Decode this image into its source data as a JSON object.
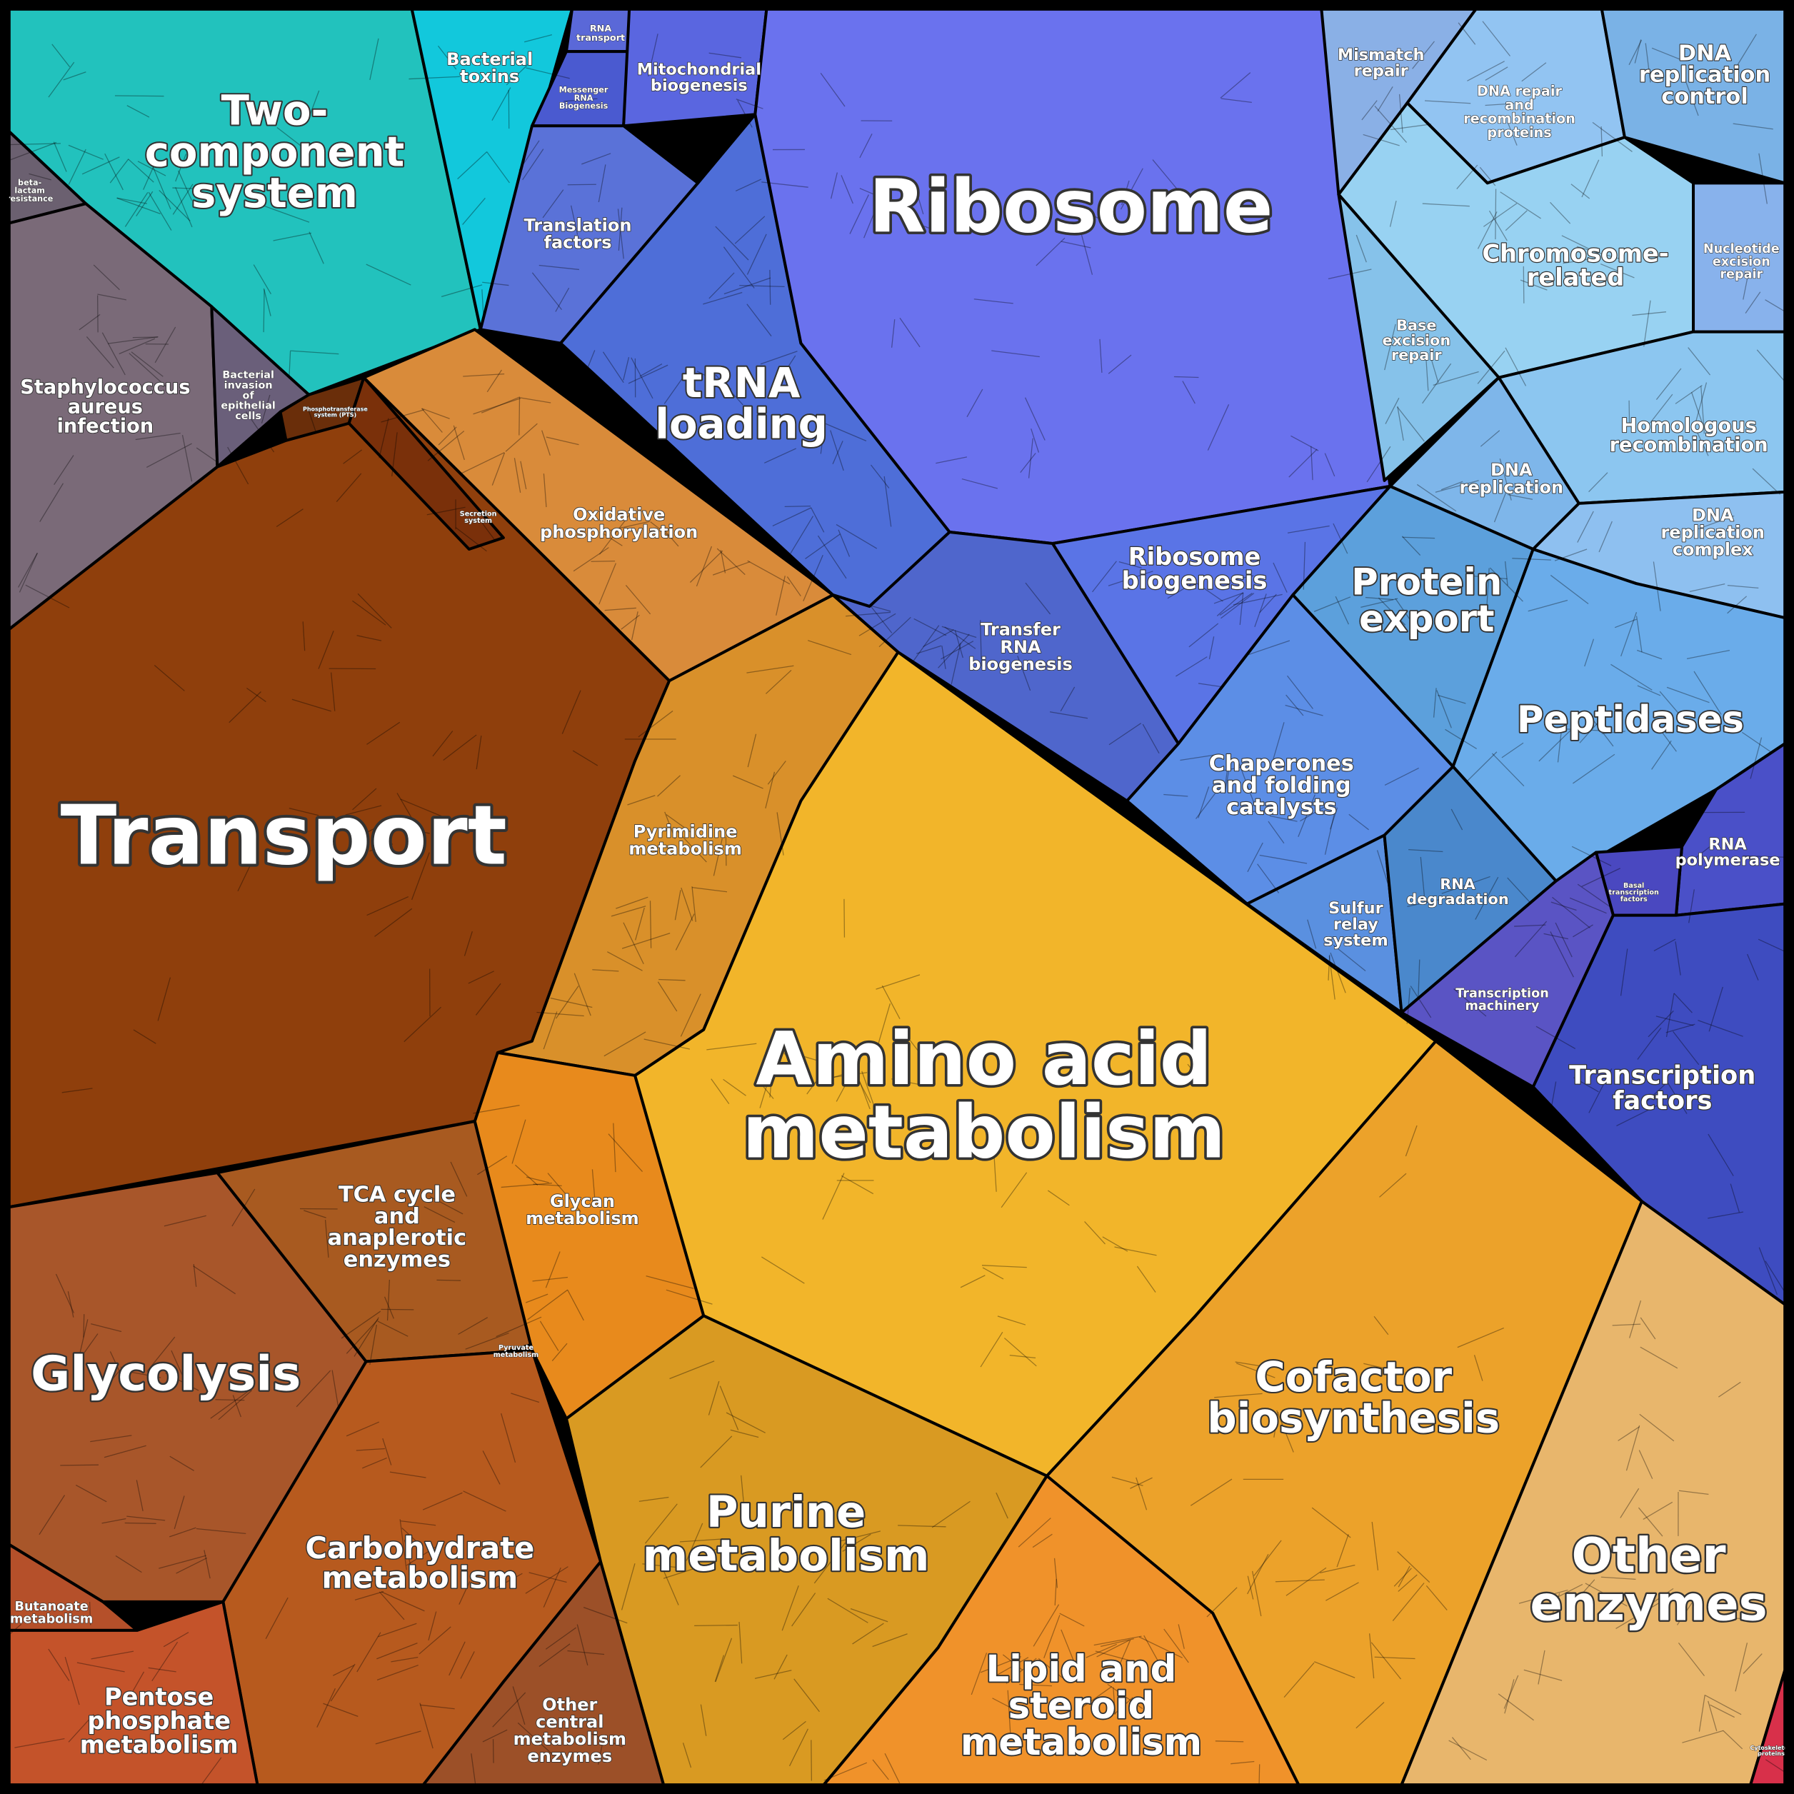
{
  "nodes": [
    {
      "lines": [
        "Two-",
        "component",
        "system"
      ]
    },
    {
      "lines": [
        "Bacterial",
        "toxins"
      ]
    },
    {
      "lines": [
        "beta-",
        "lactam",
        "resistance"
      ]
    },
    {
      "lines": [
        "Staphylococcus",
        "aureus",
        "infection"
      ]
    },
    {
      "lines": [
        "Bacterial",
        "invasion",
        "of",
        "epithelial",
        "cells"
      ]
    },
    {
      "lines": [
        "Phosphotransferase",
        "system (PTS)"
      ]
    },
    {
      "lines": [
        "Transport"
      ]
    },
    {
      "lines": [
        "Secretion",
        "system"
      ]
    },
    {
      "lines": [
        "Oxidative",
        "phosphorylation"
      ]
    },
    {
      "lines": [
        "Glycolysis"
      ]
    },
    {
      "lines": [
        "TCA cycle",
        "and",
        "anaplerotic",
        "enzymes"
      ]
    },
    {
      "lines": [
        "Pyruvate",
        "metabolism"
      ]
    },
    {
      "lines": [
        "Carbohydrate",
        "metabolism"
      ]
    },
    {
      "lines": [
        "Butanoate",
        "metabolism"
      ]
    },
    {
      "lines": [
        "Pentose",
        "phosphate",
        "metabolism"
      ]
    },
    {
      "lines": [
        "Other",
        "central",
        "metabolism",
        "enzymes"
      ]
    },
    {
      "lines": [
        "Pyrimidine",
        "metabolism"
      ]
    },
    {
      "lines": [
        "Glycan",
        "metabolism"
      ]
    },
    {
      "lines": [
        "Amino acid",
        "metabolism"
      ]
    },
    {
      "lines": [
        "Purine",
        "metabolism"
      ]
    },
    {
      "lines": [
        "Cofactor",
        "biosynthesis"
      ]
    },
    {
      "lines": [
        "Lipid and",
        "steroid",
        "metabolism"
      ]
    },
    {
      "lines": [
        "Other",
        "enzymes"
      ]
    },
    {
      "lines": [
        "Cytoskeleton",
        "proteins"
      ]
    },
    {
      "lines": [
        "RNA",
        "transport"
      ]
    },
    {
      "lines": [
        "Messenger",
        "RNA",
        "Biogenesis"
      ]
    },
    {
      "lines": [
        "Mitochondrial",
        "biogenesis"
      ]
    },
    {
      "lines": [
        "Translation",
        "factors"
      ]
    },
    {
      "lines": [
        "tRNA",
        "loading"
      ]
    },
    {
      "lines": [
        "Ribosome"
      ]
    },
    {
      "lines": [
        "Transfer",
        "RNA",
        "biogenesis"
      ]
    },
    {
      "lines": [
        "Ribosome",
        "biogenesis"
      ]
    },
    {
      "lines": [
        "Mismatch",
        "repair"
      ]
    },
    {
      "lines": [
        "DNA repair",
        "and",
        "recombination",
        "proteins"
      ]
    },
    {
      "lines": [
        "DNA",
        "replication",
        "control"
      ]
    },
    {
      "lines": [
        "Chromosome-",
        "related"
      ]
    },
    {
      "lines": [
        "Nucleotide",
        "excision",
        "repair"
      ]
    },
    {
      "lines": [
        "Base",
        "excision",
        "repair"
      ]
    },
    {
      "lines": [
        "Homologous",
        "recombination"
      ]
    },
    {
      "lines": [
        "DNA",
        "replication"
      ]
    },
    {
      "lines": [
        "DNA",
        "replication",
        "complex"
      ]
    },
    {
      "lines": [
        "Protein",
        "export"
      ]
    },
    {
      "lines": [
        "Peptidases"
      ]
    },
    {
      "lines": [
        "Chaperones",
        "and folding",
        "catalysts"
      ]
    },
    {
      "lines": [
        "Sulfur",
        "relay",
        "system"
      ]
    },
    {
      "lines": [
        "RNA",
        "degradation"
      ]
    },
    {
      "lines": [
        "RNA",
        "polymerase"
      ]
    },
    {
      "lines": [
        "Basal",
        "transcription",
        "factors"
      ]
    },
    {
      "lines": [
        "Transcription",
        "machinery"
      ]
    },
    {
      "lines": [
        "Transcription",
        "factors"
      ]
    }
  ]
}
